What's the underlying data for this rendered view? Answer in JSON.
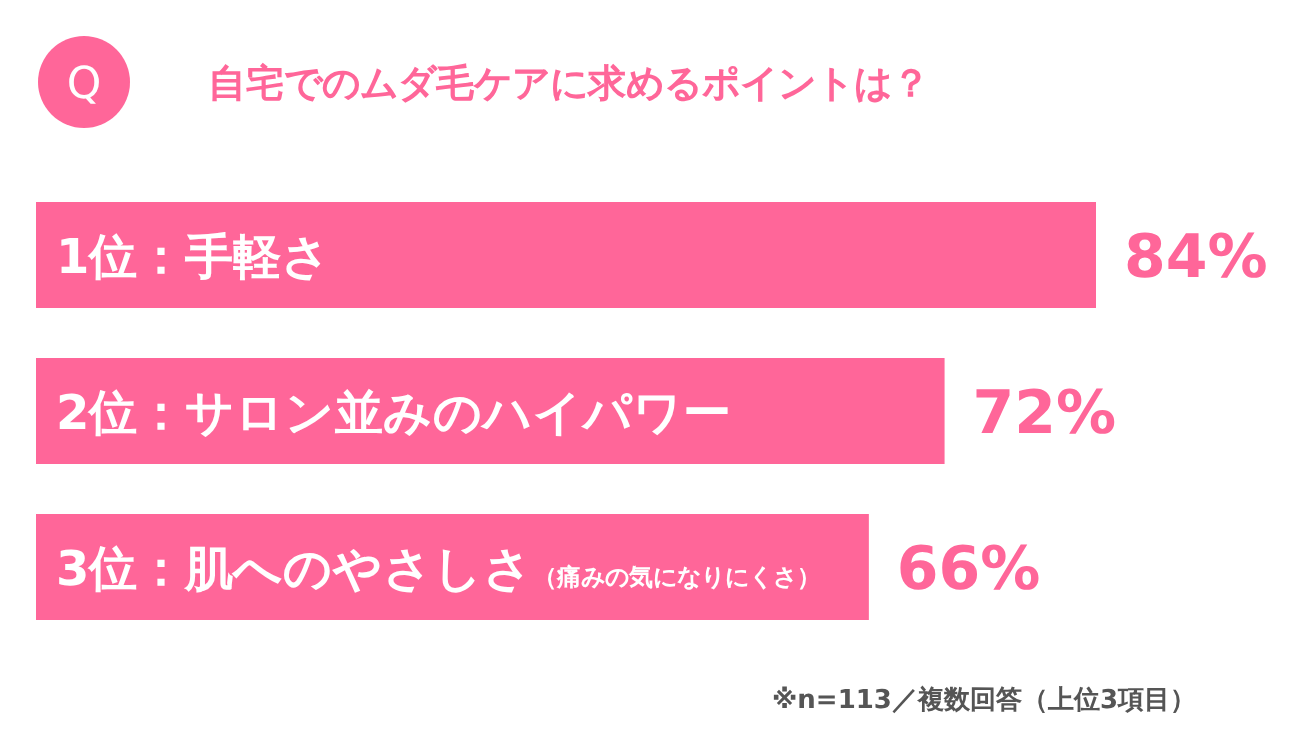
{
  "chart_data": {
    "type": "bar",
    "orientation": "horizontal",
    "title": "自宅でのムダ毛ケアに求めるポイントは？",
    "categories": [
      "1位：手軽さ",
      "2位：サロン並みのハイパワー",
      "3位：肌へのやさしさ（痛みの気になりにくさ）"
    ],
    "values": [
      84,
      72,
      66
    ],
    "color": "#ff6699",
    "data_labels": true,
    "value_labels": [
      "84%",
      "72%",
      "66%"
    ],
    "annotations": [
      "Q",
      "※n=113／複数回答（上位3項目）"
    ]
  }
}
